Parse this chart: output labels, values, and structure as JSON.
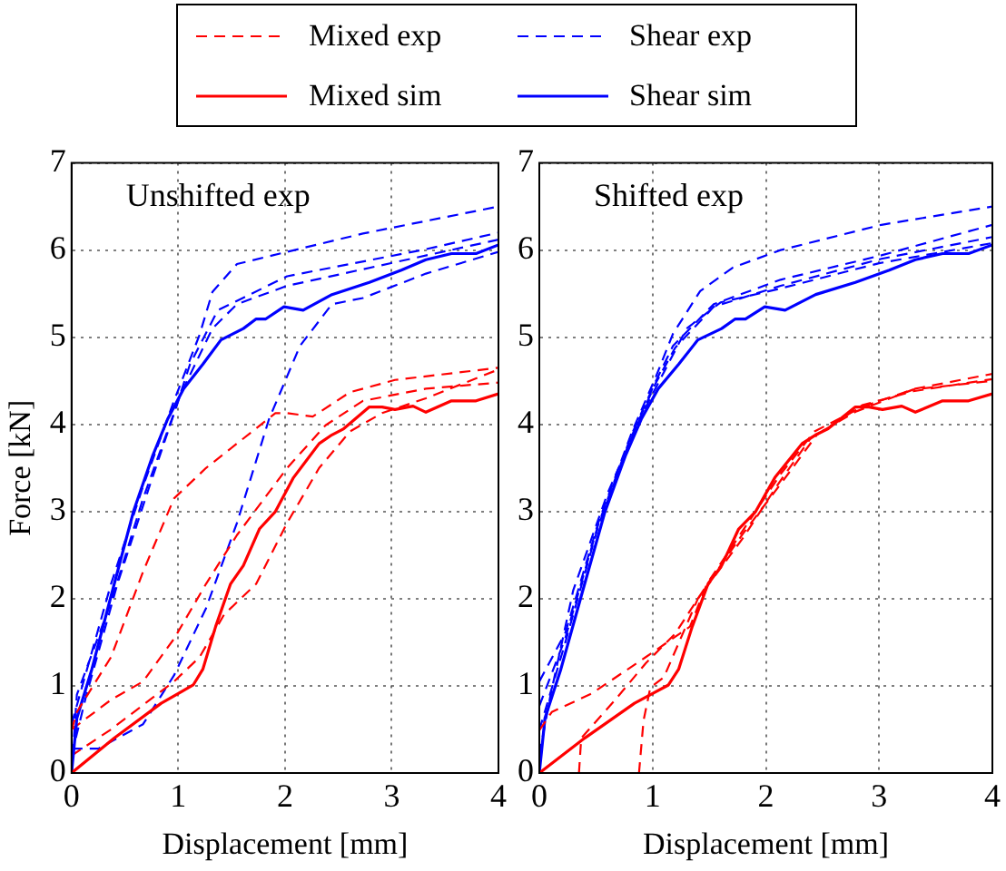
{
  "chart_data": [
    {
      "type": "line",
      "xlabel": "Displacement [mm]",
      "ylabel": "Force [kN]",
      "annotations": [
        "Unshifted exp"
      ],
      "xlim": [
        0,
        4
      ],
      "xticks": [
        0,
        1,
        2,
        3,
        4
      ],
      "ylim": [
        0,
        7
      ],
      "yticks": [
        0,
        1,
        2,
        3,
        4,
        5,
        6,
        7
      ],
      "grid": true,
      "legend": "top",
      "marker": "none",
      "series": [
        {
          "name": "Mixed exp",
          "color": "#ff0000",
          "line_style": "dashed",
          "x": [
            0,
            0.05,
            0.37,
            0.67,
            0.96,
            1.26,
            1.55,
            1.91,
            2.02,
            2.26,
            2.61,
            3.03,
            4.0
          ],
          "values": [
            0.49,
            0.7,
            1.33,
            2.31,
            3.15,
            3.5,
            3.78,
            4.13,
            4.13,
            4.09,
            4.37,
            4.51,
            4.65
          ]
        },
        {
          "name": "Mixed sim",
          "color": "#ff0000",
          "line_style": "solid",
          "x": [
            0,
            0.4,
            0.84,
            1.14,
            1.23,
            1.35,
            1.49,
            1.61,
            1.76,
            1.91,
            2.08,
            2.32,
            2.44,
            2.55,
            2.79,
            2.91,
            3.03,
            3.2,
            3.32,
            3.56,
            3.79,
            4.0
          ],
          "values": [
            0,
            0.4,
            0.8,
            1.01,
            1.19,
            1.68,
            2.17,
            2.38,
            2.8,
            3.0,
            3.39,
            3.78,
            3.88,
            3.95,
            4.2,
            4.2,
            4.17,
            4.21,
            4.14,
            4.27,
            4.27,
            4.35
          ]
        },
        {
          "name": "Shear exp",
          "color": "#0000ff",
          "line_style": "dashed",
          "x": [
            0,
            0.37,
            0.67,
            0.96,
            1.2,
            1.32,
            1.55,
            2.02,
            2.73,
            4.0
          ],
          "values": [
            0.56,
            2.17,
            3.29,
            4.27,
            5.03,
            5.52,
            5.84,
            5.98,
            6.19,
            6.5
          ]
        },
        {
          "name": "Shear sim",
          "color": "#0000ff",
          "line_style": "solid",
          "x": [
            0,
            0.05,
            0.19,
            0.37,
            0.58,
            0.76,
            0.9,
            1.05,
            1.23,
            1.4,
            1.61,
            1.73,
            1.82,
            1.99,
            2.17,
            2.44,
            2.79,
            3.09,
            3.32,
            3.56,
            3.79,
            4.0
          ],
          "values": [
            0,
            0.63,
            1.19,
            2.03,
            3.0,
            3.64,
            4.06,
            4.41,
            4.69,
            4.97,
            5.1,
            5.21,
            5.21,
            5.35,
            5.31,
            5.49,
            5.63,
            5.77,
            5.89,
            5.96,
            5.96,
            6.06
          ]
        },
        {
          "color": "#ff0000",
          "line_style": "dashed",
          "x": [
            0,
            0.37,
            0.67,
            0.96,
            1.26,
            1.55,
            2.02,
            2.38,
            2.73,
            3.32,
            4.0
          ],
          "values": [
            0.5,
            0.84,
            1.05,
            1.54,
            2.17,
            2.73,
            3.5,
            3.99,
            4.27,
            4.41,
            4.48
          ]
        },
        {
          "color": "#ff0000",
          "line_style": "dashed",
          "x": [
            0,
            0.37,
            0.96,
            1.2,
            1.43,
            1.73,
            2.02,
            2.32,
            2.61,
            2.91,
            3.32,
            4.0
          ],
          "values": [
            0.2,
            0.5,
            1.05,
            1.33,
            1.82,
            2.17,
            2.87,
            3.5,
            3.92,
            4.13,
            4.3,
            4.63
          ]
        },
        {
          "color": "#0000ff",
          "line_style": "dashed",
          "x": [
            0,
            0.05,
            0.37,
            0.67,
            0.96,
            1.11,
            1.37,
            2.02,
            3.32,
            4.0
          ],
          "values": [
            0,
            0.9,
            1.96,
            3.15,
            4.13,
            4.69,
            5.31,
            5.7,
            6.01,
            6.2
          ]
        },
        {
          "color": "#0000ff",
          "line_style": "dashed",
          "x": [
            0,
            0.14,
            0.43,
            0.73,
            1.02,
            1.32,
            1.55,
            2.02,
            4.0
          ],
          "values": [
            0.2,
            0.9,
            2.17,
            3.29,
            4.34,
            5.1,
            5.38,
            5.59,
            6.12
          ]
        },
        {
          "color": "#0000ff",
          "line_style": "dashed",
          "x": [
            0,
            0.25,
            0.67,
            0.96,
            1.26,
            1.55,
            1.85,
            2.14,
            2.44,
            2.73,
            3.32,
            4.0
          ],
          "values": [
            0.28,
            0.28,
            0.56,
            1.12,
            1.89,
            2.87,
            4.06,
            4.9,
            5.38,
            5.45,
            5.73,
            5.98
          ]
        }
      ]
    },
    {
      "type": "line",
      "xlabel": "Displacement [mm]",
      "annotations": [
        "Shifted exp"
      ],
      "xlim": [
        0,
        4
      ],
      "xticks": [
        0,
        1,
        2,
        3,
        4
      ],
      "ylim": [
        0,
        7
      ],
      "yticks": [
        0,
        1,
        2,
        3,
        4,
        5,
        6,
        7
      ],
      "grid": true,
      "legend": false,
      "marker": "none",
      "series": [
        {
          "color": "#ff0000",
          "line_style": "dashed",
          "x": [
            0,
            0.11,
            0.46,
            0.94,
            1.33,
            1.48,
            1.77,
            2.13,
            2.43,
            2.85,
            3.32,
            4.0
          ],
          "values": [
            0.49,
            0.7,
            0.91,
            1.33,
            1.68,
            2.17,
            2.73,
            3.43,
            3.92,
            4.2,
            4.41,
            4.58
          ]
        },
        {
          "color": "#ff0000",
          "line_style": "dashed",
          "x": [
            0.35,
            0.37,
            0.67,
            0.94,
            1.2,
            1.45,
            1.8,
            2.15,
            2.45,
            2.85,
            3.3,
            4.0
          ],
          "values": [
            0,
            0.4,
            0.84,
            1.26,
            1.6,
            2.1,
            2.75,
            3.35,
            3.88,
            4.22,
            4.38,
            4.52
          ]
        },
        {
          "color": "#ff0000",
          "line_style": "dashed",
          "x": [
            0.88,
            0.92,
            0.98,
            1.1,
            1.4,
            1.8,
            2.1,
            2.4,
            2.8,
            3.3,
            4.0
          ],
          "values": [
            0,
            0.6,
            0.98,
            1.1,
            2.0,
            2.7,
            3.3,
            3.85,
            4.15,
            4.4,
            4.5
          ]
        },
        {
          "color": "#ff0000",
          "line_style": "solid",
          "x": [
            0,
            0.4,
            0.84,
            1.14,
            1.23,
            1.35,
            1.49,
            1.61,
            1.76,
            1.91,
            2.08,
            2.32,
            2.44,
            2.55,
            2.79,
            2.91,
            3.03,
            3.2,
            3.32,
            3.56,
            3.79,
            4.0
          ],
          "values": [
            0,
            0.4,
            0.8,
            1.01,
            1.19,
            1.68,
            2.17,
            2.38,
            2.8,
            3.0,
            3.39,
            3.78,
            3.88,
            3.95,
            4.2,
            4.2,
            4.17,
            4.21,
            4.14,
            4.27,
            4.27,
            4.35
          ]
        },
        {
          "color": "#0000ff",
          "line_style": "dashed",
          "x": [
            0,
            0.23,
            0.52,
            0.82,
            1.03,
            1.18,
            1.42,
            1.71,
            2.13,
            3.02,
            4.0
          ],
          "values": [
            1.05,
            1.61,
            2.87,
            3.92,
            4.55,
            5.04,
            5.53,
            5.8,
            6.0,
            6.29,
            6.5
          ]
        },
        {
          "color": "#0000ff",
          "line_style": "dashed",
          "x": [
            0,
            0.23,
            0.52,
            0.82,
            1.03,
            1.18,
            1.54,
            2.13,
            3.02,
            4.0
          ],
          "values": [
            0.77,
            1.55,
            2.85,
            3.9,
            4.5,
            4.9,
            5.38,
            5.66,
            5.94,
            6.29
          ]
        },
        {
          "color": "#0000ff",
          "line_style": "dashed",
          "x": [
            0,
            0.23,
            0.52,
            0.82,
            1.03,
            1.2,
            1.54,
            2.13,
            3.02,
            4.0
          ],
          "values": [
            0.49,
            1.5,
            2.83,
            3.88,
            4.48,
            4.88,
            5.35,
            5.59,
            5.9,
            6.15
          ]
        },
        {
          "color": "#0000ff",
          "line_style": "dashed",
          "x": [
            0,
            0.1,
            0.3,
            0.6,
            0.9,
            1.1,
            1.3,
            1.6,
            2.1,
            3.0,
            4.0
          ],
          "values": [
            0.21,
            0.9,
            2.1,
            3.2,
            4.1,
            4.6,
            5.1,
            5.4,
            5.55,
            5.85,
            6.08
          ]
        },
        {
          "color": "#0000ff",
          "line_style": "solid",
          "x": [
            0,
            0.05,
            0.19,
            0.37,
            0.58,
            0.76,
            0.9,
            1.05,
            1.23,
            1.4,
            1.61,
            1.73,
            1.82,
            1.99,
            2.17,
            2.44,
            2.79,
            3.09,
            3.32,
            3.56,
            3.79,
            4.0
          ],
          "values": [
            0,
            0.63,
            1.19,
            2.03,
            3.0,
            3.64,
            4.06,
            4.41,
            4.69,
            4.97,
            5.1,
            5.21,
            5.21,
            5.35,
            5.31,
            5.49,
            5.63,
            5.77,
            5.89,
            5.96,
            5.96,
            6.06
          ]
        }
      ]
    }
  ]
}
